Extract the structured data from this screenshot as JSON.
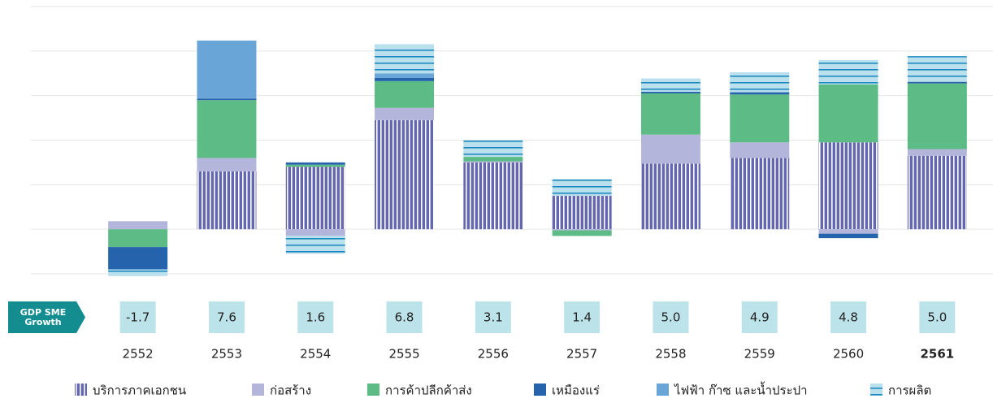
{
  "chart_data": {
    "type": "stacked_bar",
    "categories": [
      "2552",
      "2553",
      "2554",
      "2555",
      "2556",
      "2557",
      "2558",
      "2559",
      "2560",
      "2561"
    ],
    "ylim": [
      -2,
      10
    ],
    "yticks": [
      -2,
      0,
      2,
      4,
      6,
      8,
      10
    ],
    "grid": true,
    "series": [
      {
        "name": "บริการภาคเอกชน",
        "color": "#6366b0",
        "pattern": "vertical",
        "values": [
          0,
          2.6,
          2.8,
          4.9,
          3.0,
          1.5,
          2.95,
          3.2,
          3.9,
          3.3
        ]
      },
      {
        "name": "ก่อสร้าง",
        "color": "#b3b5db",
        "values": [
          0.36,
          0.6,
          -0.3,
          0.55,
          0.05,
          -0.05,
          1.3,
          0.7,
          -0.2,
          0.3
        ]
      },
      {
        "name": "การค้าปลีกค้าส่ง",
        "color": "#5dbb86",
        "values": [
          -0.8,
          2.6,
          0.1,
          1.2,
          0.2,
          -0.25,
          1.85,
          2.15,
          2.6,
          2.95
        ]
      },
      {
        "name": "เหมืองแร่",
        "color": "#2563ac",
        "values": [
          -1.0,
          0.07,
          0.1,
          0.15,
          0,
          0,
          0.07,
          0.1,
          -0.2,
          0.07
        ]
      },
      {
        "name": "ไฟฟ้า ก๊าซ และน้ำประปา",
        "color": "#6aa5d8",
        "values": [
          0,
          2.6,
          0,
          0.2,
          0,
          0,
          0,
          0,
          0,
          0
        ]
      },
      {
        "name": "การผลิต",
        "color": "#b9e0ec",
        "pattern": "horizontal",
        "values": [
          -0.3,
          0,
          -0.8,
          1.3,
          0.75,
          0.75,
          0.6,
          0.9,
          1.1,
          1.15
        ]
      }
    ],
    "growth_label": "GDP SME Growth",
    "growth": [
      -1.7,
      7.6,
      1.6,
      6.8,
      3.1,
      1.4,
      5.0,
      4.9,
      4.8,
      5.0
    ],
    "growth_value_labels": [
      "-1.7",
      "7.6",
      "1.6",
      "6.8",
      "3.1",
      "1.4",
      "5.0",
      "4.9",
      "4.8",
      "5.0"
    ],
    "negative_color": "#e8323c",
    "highlight_last": true
  }
}
